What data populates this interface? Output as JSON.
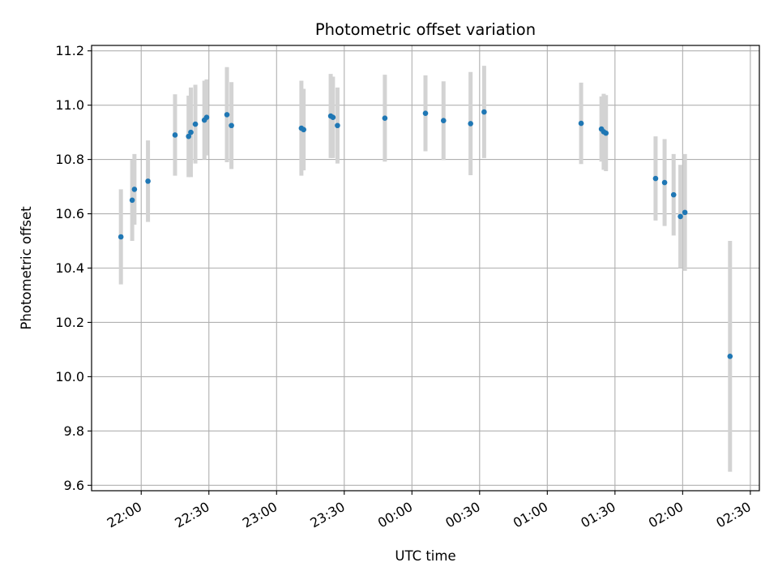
{
  "chart_data": {
    "type": "scatter",
    "title": "Photometric offset variation",
    "xlabel": "UTC time",
    "ylabel": "Photometric offset",
    "x_unit": "UTC time (hh:mm), two consecutive days",
    "xlim": [
      "21:38",
      "02:34"
    ],
    "ylim": [
      9.58,
      11.22
    ],
    "x_ticks": [
      "22:00",
      "22:30",
      "23:00",
      "23:30",
      "00:00",
      "00:30",
      "01:00",
      "01:30",
      "02:00",
      "02:30"
    ],
    "y_ticks": [
      "9.6",
      "9.8",
      "10.0",
      "10.2",
      "10.4",
      "10.6",
      "10.8",
      "11.0",
      "11.2"
    ],
    "grid": true,
    "colors": {
      "points": "#1f77b4",
      "errorbars": "#d3d3d3",
      "grid": "#b0b0b0"
    },
    "points": [
      {
        "x": "21:51",
        "y": 10.515,
        "yerr": 0.175
      },
      {
        "x": "21:56",
        "y": 10.65,
        "yerr": 0.15
      },
      {
        "x": "21:57",
        "y": 10.69,
        "yerr": 0.13
      },
      {
        "x": "22:03",
        "y": 10.72,
        "yerr": 0.15
      },
      {
        "x": "22:15",
        "y": 10.89,
        "yerr": 0.15
      },
      {
        "x": "22:21",
        "y": 10.885,
        "yerr": 0.15
      },
      {
        "x": "22:22",
        "y": 10.9,
        "yerr": 0.165
      },
      {
        "x": "22:24",
        "y": 10.93,
        "yerr": 0.145
      },
      {
        "x": "22:28",
        "y": 10.945,
        "yerr": 0.145
      },
      {
        "x": "22:29",
        "y": 10.955,
        "yerr": 0.14
      },
      {
        "x": "22:38",
        "y": 10.965,
        "yerr": 0.175
      },
      {
        "x": "22:40",
        "y": 10.925,
        "yerr": 0.16
      },
      {
        "x": "23:11",
        "y": 10.915,
        "yerr": 0.175
      },
      {
        "x": "23:12",
        "y": 10.91,
        "yerr": 0.15
      },
      {
        "x": "23:24",
        "y": 10.96,
        "yerr": 0.155
      },
      {
        "x": "23:25",
        "y": 10.955,
        "yerr": 0.15
      },
      {
        "x": "23:27",
        "y": 10.925,
        "yerr": 0.14
      },
      {
        "x": "23:48",
        "y": 10.952,
        "yerr": 0.16
      },
      {
        "x": "00:06",
        "y": 10.97,
        "yerr": 0.14
      },
      {
        "x": "00:14",
        "y": 10.943,
        "yerr": 0.145
      },
      {
        "x": "00:26",
        "y": 10.932,
        "yerr": 0.19
      },
      {
        "x": "00:32",
        "y": 10.975,
        "yerr": 0.17
      },
      {
        "x": "01:15",
        "y": 10.933,
        "yerr": 0.15
      },
      {
        "x": "01:24",
        "y": 10.912,
        "yerr": 0.12
      },
      {
        "x": "01:25",
        "y": 10.902,
        "yerr": 0.14
      },
      {
        "x": "01:26",
        "y": 10.897,
        "yerr": 0.14
      },
      {
        "x": "01:48",
        "y": 10.73,
        "yerr": 0.155
      },
      {
        "x": "01:52",
        "y": 10.715,
        "yerr": 0.16
      },
      {
        "x": "01:56",
        "y": 10.67,
        "yerr": 0.15
      },
      {
        "x": "01:59",
        "y": 10.59,
        "yerr": 0.19
      },
      {
        "x": "02:01",
        "y": 10.605,
        "yerr": 0.215
      },
      {
        "x": "02:21",
        "y": 10.075,
        "yerr": 0.425
      }
    ]
  }
}
